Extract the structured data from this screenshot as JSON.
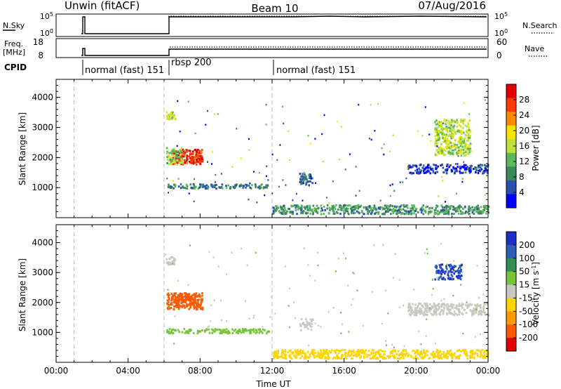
{
  "header": {
    "station": "Unwin (fitACF)",
    "beam": "Beam 10",
    "date": "07/Aug/2016"
  },
  "strips": {
    "nsky_label": "N.Sky",
    "nsky_ticks": [
      "10^5",
      "10^0"
    ],
    "nsearch_label": "N.Search",
    "nsearch_ticks": [
      "10^5",
      "10^0"
    ],
    "freq_label": [
      "Freq.",
      "[MHz]"
    ],
    "freq_ticks": [
      "18",
      "8"
    ],
    "nave_label": "Nave",
    "nave_ticks": [
      "60",
      "0"
    ],
    "cpid_label": "CPID",
    "cpid_segments": [
      {
        "label": "normal (fast) 151",
        "start": 1.0
      },
      {
        "label": "rbsp 200",
        "start": 6.0
      },
      {
        "label": "normal (fast) 151",
        "start": 12.0
      }
    ]
  },
  "colors": {
    "power_scale": [
      "#0000ff",
      "#2b4fb0",
      "#3c8a5a",
      "#5cb85c",
      "#bfe03a",
      "#f5e400",
      "#ff8a00",
      "#ff3a00",
      "#e00000"
    ],
    "velocity_scale": [
      "#1d2fc7",
      "#2c5fb5",
      "#2f8f55",
      "#77c43a",
      "#c8c8c0",
      "#ffd500",
      "#ff9b00",
      "#ff5a00",
      "#e00000"
    ]
  },
  "chart_data": [
    {
      "type": "heatmap",
      "title": "",
      "ylabel": "Slant Range [km]",
      "xlabel": "",
      "xlim": [
        0,
        24
      ],
      "ylim": [
        0,
        4600
      ],
      "yticks": [
        "1000",
        "2000",
        "3000",
        "4000"
      ],
      "colorbar_label": "Power [dB]",
      "colorbar_ticks": [
        "4",
        "8",
        "12",
        "16",
        "20",
        "24",
        "28"
      ],
      "colorbar_range": [
        0,
        32
      ],
      "regions": [
        {
          "t": [
            6.4,
            8.1
          ],
          "r": [
            1800,
            2300
          ],
          "level": 28
        },
        {
          "t": [
            6.1,
            7.0
          ],
          "r": [
            1800,
            2350
          ],
          "level": 14
        },
        {
          "t": [
            6.1,
            6.6
          ],
          "r": [
            3300,
            3550
          ],
          "level": 16
        },
        {
          "t": [
            6.1,
            11.8
          ],
          "r": [
            1000,
            1150
          ],
          "level": 8
        },
        {
          "t": [
            12.0,
            24.0
          ],
          "r": [
            150,
            450
          ],
          "level": 10
        },
        {
          "t": [
            21.0,
            23.0
          ],
          "r": [
            2100,
            3300
          ],
          "level": 16
        },
        {
          "t": [
            19.5,
            24.0
          ],
          "r": [
            1500,
            1800
          ],
          "level": 4
        },
        {
          "t": [
            13.5,
            14.2
          ],
          "r": [
            1100,
            1500
          ],
          "level": 6
        }
      ]
    },
    {
      "type": "heatmap",
      "title": "",
      "ylabel": "Slant Range [km]",
      "xlabel": "Time UT",
      "xlim": [
        0,
        24
      ],
      "ylim": [
        0,
        4600
      ],
      "yticks": [
        "1000",
        "2000",
        "3000",
        "4000"
      ],
      "xticks": [
        "00:00",
        "04:00",
        "08:00",
        "12:00",
        "16:00",
        "20:00",
        "00:00"
      ],
      "colorbar_label": "Velocity [m s^-1]",
      "colorbar_ticks": [
        "200",
        "100",
        "50",
        "15",
        "-15",
        "-50",
        "-100",
        "-200"
      ],
      "regions": [
        {
          "t": [
            6.1,
            8.1
          ],
          "r": [
            1800,
            2350
          ],
          "level": -80
        },
        {
          "t": [
            6.1,
            6.6
          ],
          "r": [
            3300,
            3550
          ],
          "level": 0
        },
        {
          "t": [
            6.1,
            11.8
          ],
          "r": [
            1000,
            1150
          ],
          "level": 20
        },
        {
          "t": [
            12.0,
            24.0
          ],
          "r": [
            150,
            450
          ],
          "level": -20
        },
        {
          "t": [
            19.5,
            24.0
          ],
          "r": [
            1600,
            2000
          ],
          "level": 0
        },
        {
          "t": [
            21.0,
            22.5
          ],
          "r": [
            2800,
            3300
          ],
          "level": 150
        },
        {
          "t": [
            13.5,
            14.2
          ],
          "r": [
            1100,
            1500
          ],
          "level": 0
        }
      ]
    }
  ]
}
